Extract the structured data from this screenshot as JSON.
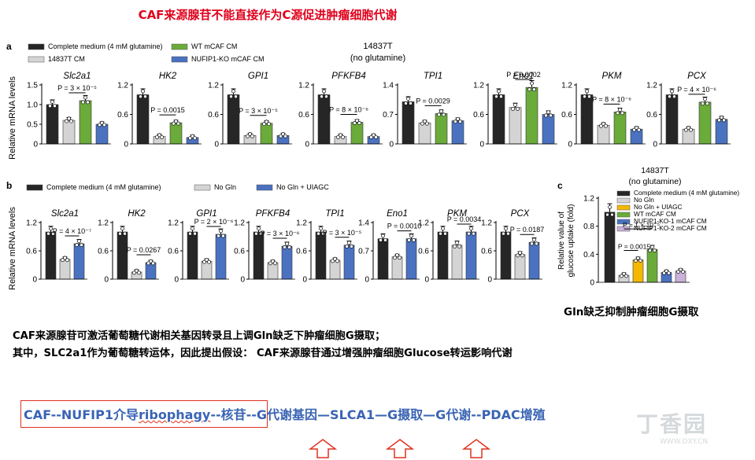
{
  "slide_title": "CAF来源腺苷不能直接作为C源促进肿瘤细胞代谢",
  "colors": {
    "title_red": "#e0001b",
    "flow_blue": "#3a64b4",
    "complete": "#262626",
    "t14837_cm": "#d4d4d4",
    "wt_mcaf": "#6aab3a",
    "nufip1_ko": "#4a72c0",
    "uiagc": "#f5b800",
    "nufip1_ko2": "#c9b1d9"
  },
  "panel_a": {
    "label": "a",
    "ylabel": "Relative mRNA levels",
    "condition_title": "14837T",
    "condition_sub": "(no glutamine)",
    "legend": [
      {
        "label": "Complete medium (4 mM glutamine)",
        "color": "#262626"
      },
      {
        "label": "WT mCAF CM",
        "color": "#6aab3a"
      },
      {
        "label": "14837T CM",
        "color": "#d4d4d4"
      },
      {
        "label": "NUFIP1-KO mCAF CM",
        "color": "#4a72c0"
      }
    ]
  },
  "panel_b": {
    "label": "b",
    "ylabel": "Relative mRNA levels",
    "legend": [
      {
        "label": "Complete medium (4 mM glutamine)",
        "color": "#262626"
      },
      {
        "label": "No Gln",
        "color": "#d4d4d4"
      },
      {
        "label": "No Gln + UIAGC",
        "color": "#4a72c0"
      }
    ]
  },
  "panel_c": {
    "label": "c",
    "condition_title": "14837T",
    "condition_sub": "(no glutamine)",
    "ylabel_line1": "Relative value of",
    "ylabel_line2": "glucose uptake (fold)",
    "legend": [
      {
        "label": "Complete medium (4 mM glutamine)",
        "color": "#262626"
      },
      {
        "label": "No Gln",
        "color": "#d4d4d4"
      },
      {
        "label": "No Gln + UIAGC",
        "color": "#f5b800"
      },
      {
        "label": "WT mCAF CM",
        "color": "#6aab3a"
      },
      {
        "label": "NUFIP1-KO-1 mCAF CM",
        "color": "#4a72c0"
      },
      {
        "label": "NUFIP1-KO-2 mCAF CM",
        "color": "#c9b1d9"
      }
    ]
  },
  "chart_data": [
    {
      "panel": "a",
      "type": "bar",
      "ylabel": "Relative mRNA levels",
      "categories": [
        "Complete medium (4 mM glutamine)",
        "14837T CM",
        "WT mCAF CM",
        "NUFIP1-KO mCAF CM"
      ],
      "subplots": [
        {
          "gene": "Slc2a1",
          "yticks": [
            "0",
            "0.5",
            "1.0",
            "1.5"
          ],
          "ylim": [
            0,
            1.5
          ],
          "values": [
            1.0,
            0.6,
            1.1,
            0.5
          ],
          "pvalue": {
            "text": "P = 3 × 10⁻⁵",
            "from": 1,
            "to": 2
          }
        },
        {
          "gene": "HK2",
          "yticks": [
            "0",
            "0.6",
            "1.2"
          ],
          "ylim": [
            0,
            1.2
          ],
          "values": [
            1.0,
            0.15,
            0.43,
            0.13
          ],
          "pvalue": {
            "text": "P = 0.0015",
            "from": 1,
            "to": 2
          }
        },
        {
          "gene": "GPI1",
          "yticks": [
            "0",
            "0.6",
            "1.2"
          ],
          "ylim": [
            0,
            1.2
          ],
          "values": [
            1.0,
            0.17,
            0.42,
            0.17
          ],
          "pvalue": {
            "text": "P = 3 × 10⁻⁵",
            "from": 1,
            "to": 2
          }
        },
        {
          "gene": "PFKFB4",
          "yticks": [
            "0",
            "0.6",
            "1.2"
          ],
          "ylim": [
            0,
            1.2
          ],
          "values": [
            1.0,
            0.15,
            0.44,
            0.15
          ],
          "pvalue": {
            "text": "P = 8 × 10⁻⁶",
            "from": 1,
            "to": 2
          }
        },
        {
          "gene": "TPI1",
          "yticks": [
            "0",
            "0.7",
            "1.4"
          ],
          "ylim": [
            0,
            1.4
          ],
          "values": [
            1.0,
            0.5,
            0.72,
            0.55
          ],
          "pvalue": {
            "text": "P = 0.0029",
            "from": 1,
            "to": 2
          }
        },
        {
          "gene": "Eno1",
          "yticks": [
            "0",
            "0.6",
            "1.2"
          ],
          "ylim": [
            0,
            1.2
          ],
          "values": [
            1.0,
            0.74,
            1.15,
            0.6
          ],
          "pvalue": {
            "text": "P = 0.0002",
            "from": 1,
            "to": 2
          }
        },
        {
          "gene": "PKM",
          "yticks": [
            "0",
            "0.6",
            "1.2"
          ],
          "ylim": [
            0,
            1.2
          ],
          "values": [
            1.0,
            0.38,
            0.65,
            0.3
          ],
          "pvalue": {
            "text": "P = 8 × 10⁻⁶",
            "from": 1,
            "to": 2
          }
        },
        {
          "gene": "PCX",
          "yticks": [
            "0",
            "0.6",
            "1.2"
          ],
          "ylim": [
            0,
            1.2
          ],
          "values": [
            1.0,
            0.3,
            0.85,
            0.5
          ],
          "pvalue": {
            "text": "P = 4 × 10⁻⁶",
            "from": 1,
            "to": 2
          }
        }
      ]
    },
    {
      "panel": "b",
      "type": "bar",
      "ylabel": "Relative mRNA levels",
      "categories": [
        "Complete medium (4 mM glutamine)",
        "No Gln",
        "No Gln + UIAGC"
      ],
      "subplots": [
        {
          "gene": "Slc2a1",
          "yticks": [
            "0",
            "0.6",
            "1.2"
          ],
          "ylim": [
            0,
            1.2
          ],
          "values": [
            1.0,
            0.42,
            0.75
          ],
          "pvalue": {
            "text": "P = 4 × 10⁻⁷",
            "from": 1,
            "to": 2
          }
        },
        {
          "gene": "HK2",
          "yticks": [
            "0",
            "0.6",
            "1.2"
          ],
          "ylim": [
            0,
            1.2
          ],
          "values": [
            1.0,
            0.15,
            0.35
          ],
          "pvalue": {
            "text": "P = 0.0267",
            "from": 1,
            "to": 2
          }
        },
        {
          "gene": "GPI1",
          "yticks": [
            "0",
            "0.6",
            "1.2"
          ],
          "ylim": [
            0,
            1.2
          ],
          "values": [
            1.0,
            0.38,
            0.95
          ],
          "pvalue": {
            "text": "P = 2 × 10⁻⁶",
            "from": 1,
            "to": 2
          }
        },
        {
          "gene": "PFKFB4",
          "yticks": [
            "0",
            "0.6",
            "1.2"
          ],
          "ylim": [
            0,
            1.2
          ],
          "values": [
            1.0,
            0.35,
            0.7
          ],
          "pvalue": {
            "text": "P = 3 × 10⁻⁶",
            "from": 1,
            "to": 2
          }
        },
        {
          "gene": "TPI1",
          "yticks": [
            "0",
            "0.6",
            "1.2"
          ],
          "ylim": [
            0,
            1.2
          ],
          "values": [
            1.0,
            0.4,
            0.72
          ],
          "pvalue": {
            "text": "P = 3 × 10⁻⁵",
            "from": 1,
            "to": 2
          }
        },
        {
          "gene": "Eno1",
          "yticks": [
            "0",
            "0.7",
            "1.4"
          ],
          "ylim": [
            0,
            1.4
          ],
          "values": [
            1.0,
            0.55,
            1.0
          ],
          "pvalue": {
            "text": "P = 0.0010",
            "from": 1,
            "to": 2
          }
        },
        {
          "gene": "PKM",
          "yticks": [
            "0",
            "0.6",
            "1.2"
          ],
          "ylim": [
            0,
            1.2
          ],
          "values": [
            1.0,
            0.72,
            1.0
          ],
          "pvalue": {
            "text": "P = 0.0034",
            "from": 1,
            "to": 2
          }
        },
        {
          "gene": "PCX",
          "yticks": [
            "0",
            "0.6",
            "1.2"
          ],
          "ylim": [
            0,
            1.2
          ],
          "values": [
            1.0,
            0.52,
            0.78
          ],
          "pvalue": {
            "text": "P = 0.0187",
            "from": 1,
            "to": 2
          }
        }
      ]
    },
    {
      "panel": "c",
      "type": "bar",
      "title": "14837T (no glutamine)",
      "ylabel": "Relative value of glucose uptake (fold)",
      "categories": [
        "Complete medium (4 mM glutamine)",
        "No Gln",
        "No Gln + UIAGC",
        "WT mCAF CM",
        "NUFIP1-KO-1 mCAF CM",
        "NUFIP1-KO-2 mCAF CM"
      ],
      "yticks": [
        "0",
        "0.4",
        "0.8",
        "1.2"
      ],
      "ylim": [
        0,
        1.2
      ],
      "values": [
        1.0,
        0.1,
        0.32,
        0.47,
        0.14,
        0.16
      ],
      "pvalues": [
        {
          "text": "P = 1 × 10⁻⁵",
          "from": 1,
          "to": 3
        },
        {
          "text": "P = 0.0015",
          "from": 1,
          "to": 2
        }
      ]
    }
  ],
  "panel_c_caption": "Gln缺乏抑制肿瘤细胞G摄取",
  "caption_lines": [
    "CAF来源腺苷可激活葡萄糖代谢相关基因转录且上调Gln缺乏下肿瘤细胞G摄取；",
    "其中，SLC2a1作为葡萄糖转运体，因此提出假设： CAF来源腺苷通过增强肿瘤细胞Glucose转运影响代谢"
  ],
  "flow": {
    "boxed_start": "CAF--NUFIP1介导",
    "boxed_err": "ribophagy",
    "boxed_end": "--核苷",
    "rest": "--G代谢基因—SLCA1—G摄取—G代谢--PDAC增殖"
  },
  "watermark": {
    "brand": "丁香园",
    "url": "WWW.DXY.CN"
  }
}
